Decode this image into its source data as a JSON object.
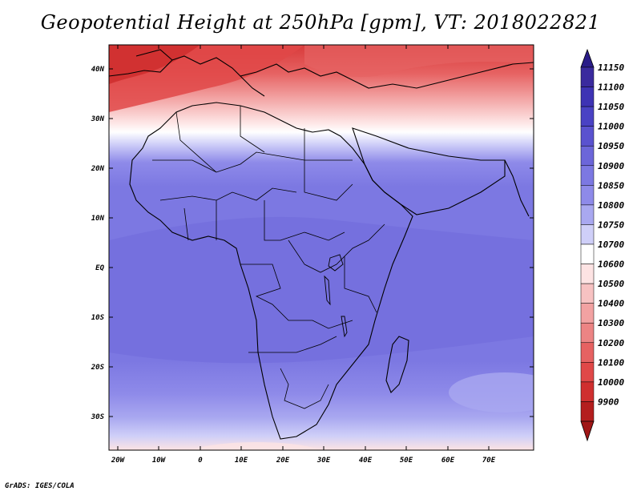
{
  "title": "Geopotential Height at 250hPa [gpm], VT: 2018022821",
  "credit": "GrADS: IGES/COLA",
  "map": {
    "lat_labels": [
      "40N",
      "30N",
      "20N",
      "10N",
      "EQ",
      "10S",
      "20S",
      "30S"
    ],
    "lon_labels": [
      "20W",
      "10W",
      "0",
      "10E",
      "20E",
      "30E",
      "40E",
      "50E",
      "60E",
      "70E"
    ],
    "lat_range": [
      -37,
      45
    ],
    "lon_range": [
      -23,
      80
    ]
  },
  "legend": {
    "levels": [
      {
        "label": "11150",
        "color": "#3a2a9e"
      },
      {
        "label": "11100",
        "color": "#3e33b4"
      },
      {
        "label": "11050",
        "color": "#4a42c4"
      },
      {
        "label": "11000",
        "color": "#5a52cf"
      },
      {
        "label": "10950",
        "color": "#6c66d9"
      },
      {
        "label": "10900",
        "color": "#7c78e2"
      },
      {
        "label": "10850",
        "color": "#8e8ae9"
      },
      {
        "label": "10800",
        "color": "#a9a8f0"
      },
      {
        "label": "10750",
        "color": "#cfcff8"
      },
      {
        "label": "10700",
        "color": "#ffffff"
      },
      {
        "label": "10600",
        "color": "#fde3e3"
      },
      {
        "label": "10500",
        "color": "#f7c2c2"
      },
      {
        "label": "10400",
        "color": "#f2a2a2"
      },
      {
        "label": "10300",
        "color": "#ec8484"
      },
      {
        "label": "10200",
        "color": "#e66262"
      },
      {
        "label": "10100",
        "color": "#e04848"
      },
      {
        "label": "10000",
        "color": "#cf2f2f"
      },
      {
        "label": "9900",
        "color": "#b41e1e"
      }
    ],
    "top_arrow_color": "#2a1c88",
    "bottom_arrow_color": "#a01616"
  }
}
